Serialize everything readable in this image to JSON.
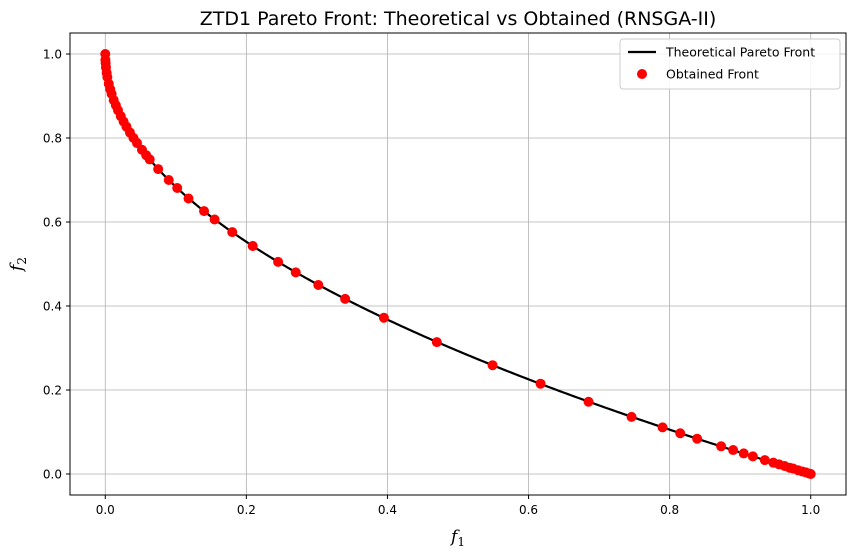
{
  "chart_data": {
    "type": "scatter",
    "title": "ZTD1 Pareto Front: Theoretical vs Obtained (RNSGA-II)",
    "xlabel_base": "f",
    "xlabel_sub": "1",
    "ylabel_base": "f",
    "ylabel_sub": "2",
    "xlim": [
      -0.05,
      1.05
    ],
    "ylim": [
      -0.05,
      1.05
    ],
    "xticks": [
      "0.0",
      "0.2",
      "0.4",
      "0.6",
      "0.8",
      "1.0"
    ],
    "yticks": [
      "0.0",
      "0.2",
      "0.4",
      "0.6",
      "0.8",
      "1.0"
    ],
    "grid": true,
    "legend_position": "top-right",
    "colors": {
      "line": "#000000",
      "points": "#ff0000",
      "grid": "#b0b0b0"
    },
    "series": [
      {
        "name": "Theoretical Pareto Front",
        "kind": "line",
        "formula": "f2 = 1 - sqrt(f1)",
        "x_range": [
          0,
          1
        ]
      },
      {
        "name": "Obtained Front",
        "kind": "scatter",
        "x": [
          0.0,
          0.0002,
          0.0005,
          0.001,
          0.002,
          0.003,
          0.005,
          0.007,
          0.009,
          0.012,
          0.015,
          0.018,
          0.022,
          0.026,
          0.03,
          0.035,
          0.04,
          0.045,
          0.052,
          0.058,
          0.063,
          0.075,
          0.09,
          0.102,
          0.118,
          0.14,
          0.155,
          0.18,
          0.209,
          0.245,
          0.27,
          0.302,
          0.34,
          0.395,
          0.47,
          0.549,
          0.617,
          0.685,
          0.746,
          0.79,
          0.815,
          0.839,
          0.873,
          0.89,
          0.905,
          0.918,
          0.935,
          0.947,
          0.955,
          0.963,
          0.97,
          0.975,
          0.982,
          0.988,
          0.993,
          0.998,
          1.0
        ],
        "y": [
          1.0,
          0.986,
          0.978,
          0.968,
          0.955,
          0.945,
          0.929,
          0.916,
          0.905,
          0.89,
          0.878,
          0.866,
          0.852,
          0.839,
          0.827,
          0.813,
          0.8,
          0.788,
          0.772,
          0.759,
          0.749,
          0.726,
          0.7,
          0.681,
          0.656,
          0.626,
          0.606,
          0.576,
          0.543,
          0.505,
          0.48,
          0.45,
          0.417,
          0.372,
          0.314,
          0.259,
          0.215,
          0.172,
          0.136,
          0.111,
          0.097,
          0.084,
          0.066,
          0.057,
          0.049,
          0.042,
          0.033,
          0.027,
          0.023,
          0.019,
          0.015,
          0.013,
          0.009,
          0.006,
          0.004,
          0.001,
          0.0
        ]
      }
    ]
  }
}
